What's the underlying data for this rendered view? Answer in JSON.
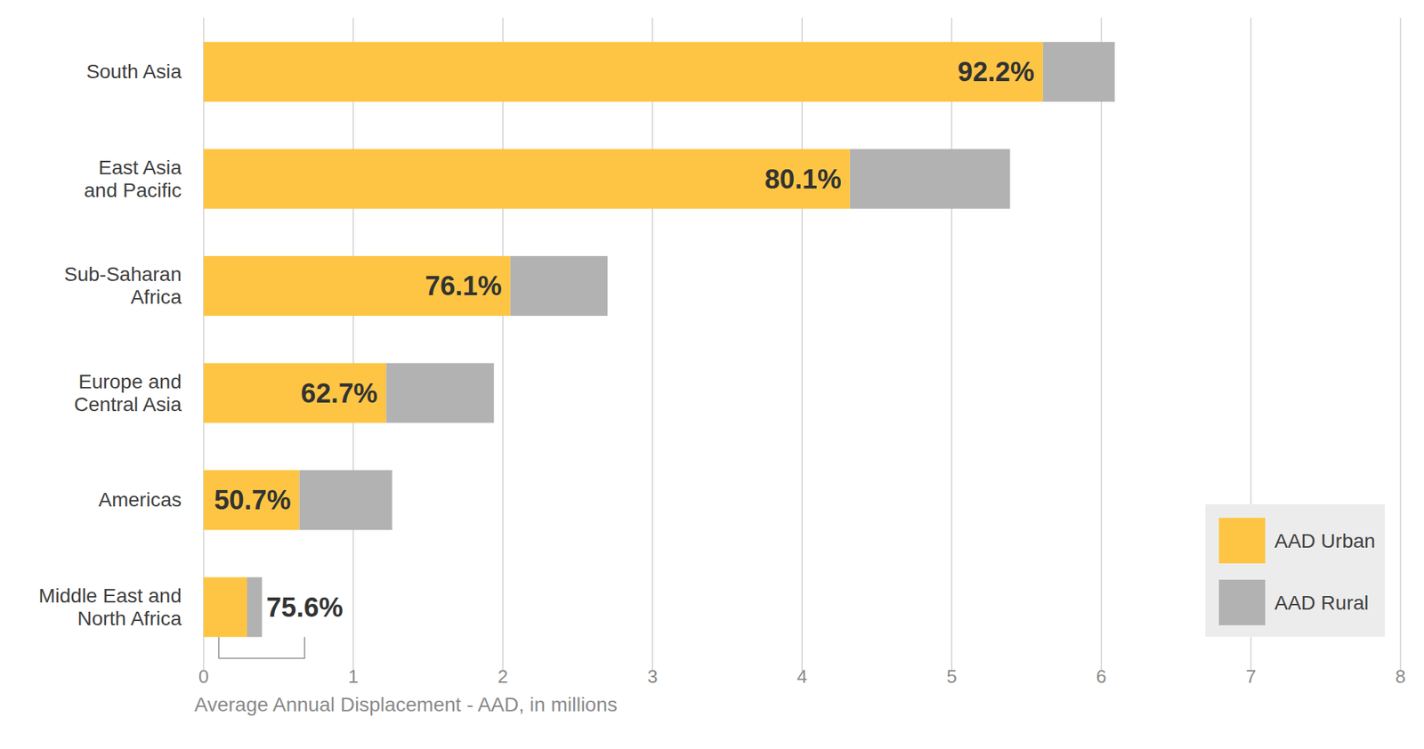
{
  "chart_data": {
    "type": "bar",
    "orientation": "horizontal",
    "stacked": true,
    "categories": [
      "South Asia",
      "East Asia\nand Pacific",
      "Sub-Saharan\nAfrica",
      "Europe and\nCentral Asia",
      "Americas",
      "Middle East and\nNorth Africa"
    ],
    "series": [
      {
        "name": "AAD Urban",
        "color": "#fdc543",
        "values": [
          5.61,
          4.32,
          2.05,
          1.22,
          0.64,
          0.29
        ]
      },
      {
        "name": "AAD Rural",
        "color": "#b2b2b2",
        "values": [
          0.48,
          1.07,
          0.65,
          0.72,
          0.62,
          0.1
        ]
      }
    ],
    "annotations": [
      "92.2%",
      "80.1%",
      "76.1%",
      "62.7%",
      "50.7%",
      "75.6%"
    ],
    "x_label": "Average Annual Displacement - AAD, in millions",
    "xlim": [
      0,
      8
    ],
    "xticks": [
      0,
      1,
      2,
      3,
      4,
      5,
      6,
      7,
      8
    ],
    "grid": true,
    "legend": "bottom-right"
  }
}
